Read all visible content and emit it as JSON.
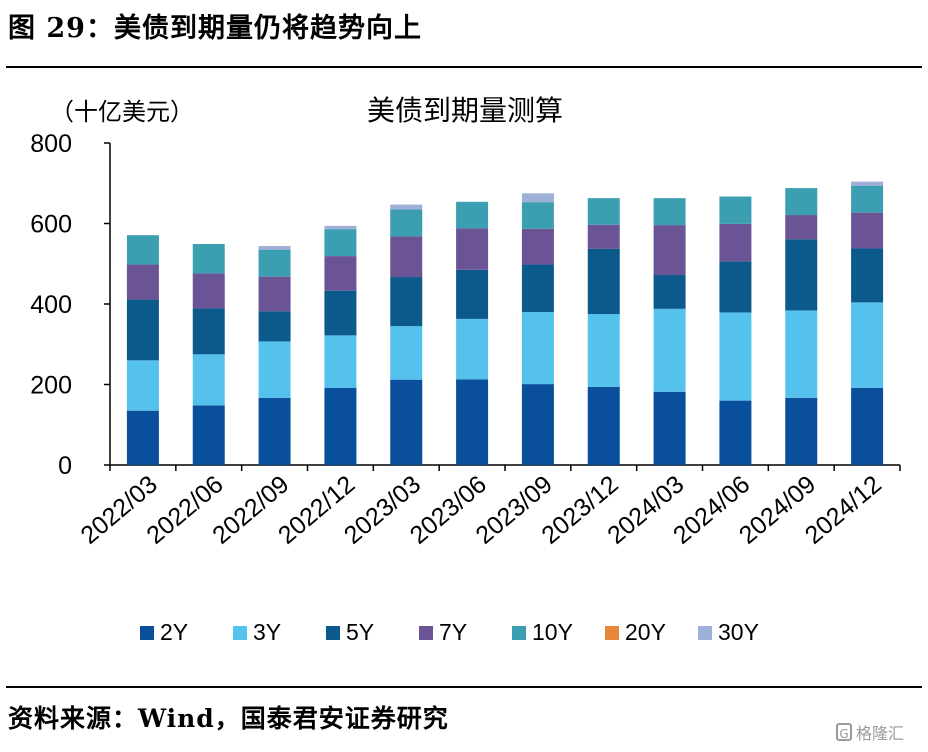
{
  "figure_title": "图 29：美债到期量仍将趋势向上",
  "source_text": "资料来源：Wind，国泰君安证券研究",
  "watermark": {
    "logo_glyph": "G",
    "text": "格隆汇"
  },
  "chart_data": {
    "type": "bar",
    "stacked": true,
    "title": "美债到期量测算",
    "unit_label": "（十亿美元）",
    "xlabel": "",
    "ylabel": "",
    "ylim": [
      0,
      800
    ],
    "yticks": [
      0,
      200,
      400,
      600,
      800
    ],
    "grid": false,
    "legend_position": "bottom",
    "categories": [
      "2022/03",
      "2022/06",
      "2022/09",
      "2022/12",
      "2023/03",
      "2023/06",
      "2023/09",
      "2023/12",
      "2024/03",
      "2024/06",
      "2024/09",
      "2024/12"
    ],
    "series": [
      {
        "name": "2Y",
        "color": "#0a4f9c",
        "values": [
          135,
          148,
          167,
          192,
          212,
          213,
          201,
          194,
          182,
          160,
          167,
          192
        ]
      },
      {
        "name": "3Y",
        "color": "#55c2ee",
        "values": [
          125,
          127,
          140,
          130,
          133,
          150,
          179,
          181,
          206,
          219,
          217,
          212
        ]
      },
      {
        "name": "5Y",
        "color": "#0c5a8c",
        "values": [
          151,
          114,
          75,
          111,
          122,
          122,
          118,
          162,
          84,
          127,
          177,
          134
        ]
      },
      {
        "name": "7Y",
        "color": "#6a5496",
        "values": [
          87,
          87,
          86,
          86,
          101,
          103,
          89,
          60,
          124,
          93,
          60,
          89
        ]
      },
      {
        "name": "10Y",
        "color": "#3c9fb1",
        "values": [
          73,
          73,
          67,
          67,
          67,
          66,
          66,
          66,
          67,
          68,
          67,
          67
        ]
      },
      {
        "name": "20Y",
        "color": "#e8893a",
        "values": [
          0,
          0,
          0,
          0,
          0,
          0,
          0,
          0,
          0,
          0,
          0,
          0
        ]
      },
      {
        "name": "30Y",
        "color": "#9fb0d8",
        "values": [
          0,
          0,
          9,
          8,
          12,
          0,
          22,
          0,
          0,
          0,
          0,
          10
        ]
      }
    ]
  }
}
